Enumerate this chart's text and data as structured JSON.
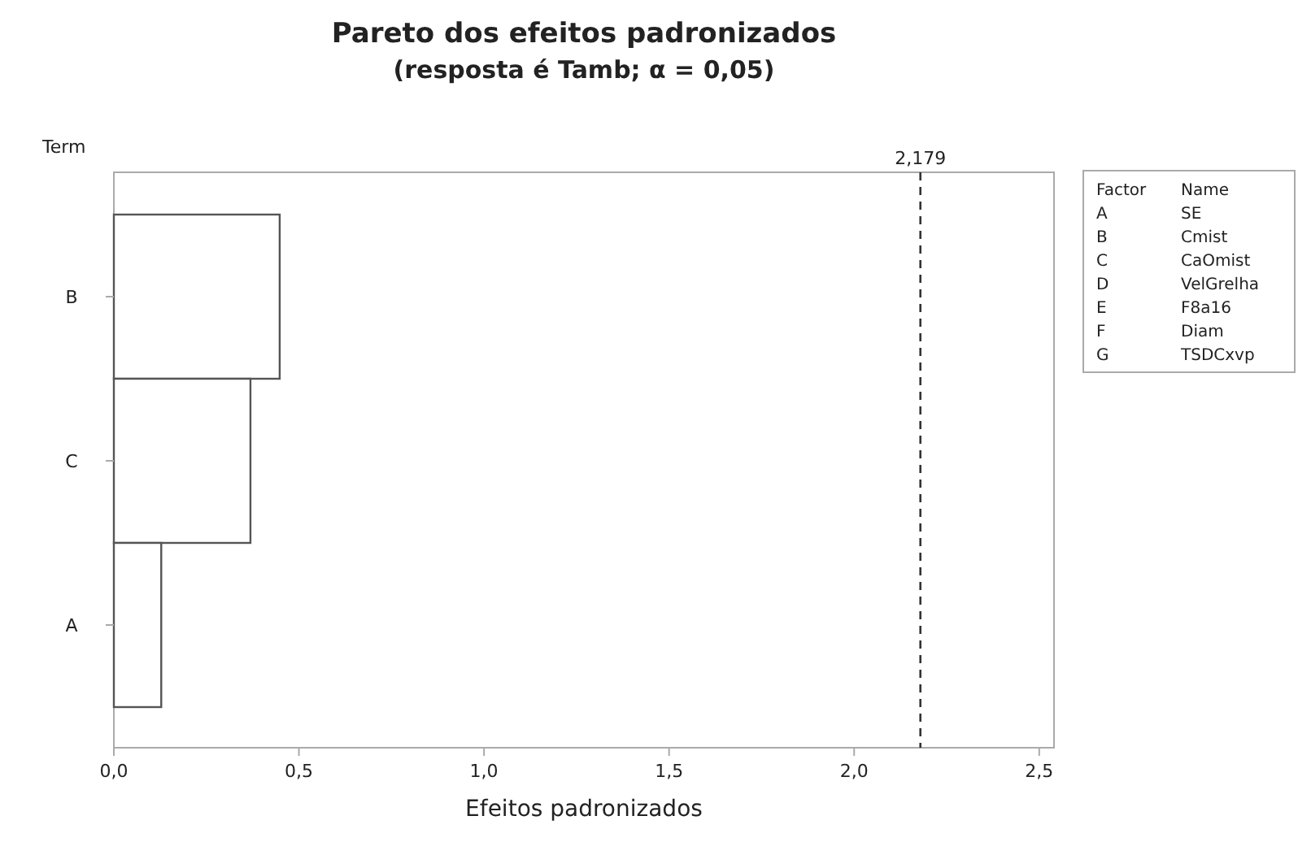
{
  "chart_data": {
    "type": "bar",
    "orientation": "horizontal",
    "title": "Pareto dos efeitos padronizados",
    "subtitle": "(resposta é Tamb; α = 0,05)",
    "xlabel": "Efeitos padronizados",
    "ylabel": "Term",
    "categories": [
      "B",
      "C",
      "A"
    ],
    "values": [
      0.448,
      0.369,
      0.128
    ],
    "color": "#ffffff",
    "xlim": [
      0,
      2.54
    ],
    "xticks": [
      {
        "value": 0,
        "label": "0,0"
      },
      {
        "value": 0.5,
        "label": "0,5"
      },
      {
        "value": 1,
        "label": "1,0"
      },
      {
        "value": 1.5,
        "label": "1,5"
      },
      {
        "value": 2,
        "label": "2,0"
      },
      {
        "value": 2.5,
        "label": "2,5"
      }
    ],
    "ref_lines": [
      {
        "axis": "x",
        "value": 2.179,
        "label": "2,179",
        "line_style": "dashed"
      }
    ],
    "annotations": [
      "Factor",
      "Name",
      "A",
      "SE",
      "B",
      "Cmist",
      "C",
      "CaOmist",
      "D",
      "VelGrelha",
      "E",
      "F8a16",
      "F",
      "Diam",
      "G",
      "TSDCxvp"
    ],
    "grid": false
  }
}
